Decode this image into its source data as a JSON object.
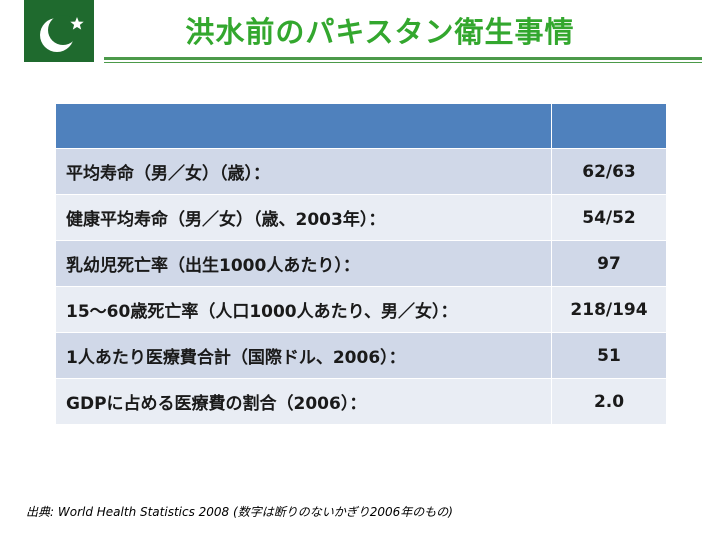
{
  "title": "洪水前のパキスタン衛生事情",
  "flag": {
    "field_color": "#1f6a2e",
    "emblem_color": "#ffffff",
    "icon": "crescent-and-star-icon"
  },
  "table": {
    "header_color": "#4f81bd",
    "header": [
      "",
      ""
    ],
    "rows": [
      {
        "label": "平均寿命（男／女）（歳）：",
        "value": "62/63"
      },
      {
        "label": "健康平均寿命（男／女）（歳、2003年）：",
        "value": "54/52"
      },
      {
        "label": "乳幼児死亡率（出生1000人あたり）：",
        "value": "97"
      },
      {
        "label": "15～60歳死亡率（人口1000人あたり、男／女）：",
        "value": "218/194"
      },
      {
        "label": "1人あたり医療費合計（国際ドル、2006）：",
        "value": "51"
      },
      {
        "label": "GDPに占める医療費の割合（2006）：",
        "value": "2.0"
      }
    ]
  },
  "source": "出典: World Health Statistics 2008 (数字は断りのないかぎり2006年のもの)"
}
